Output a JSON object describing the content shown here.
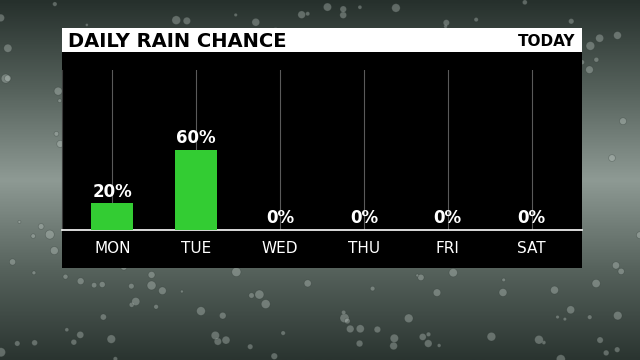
{
  "chart_data": {
    "type": "bar",
    "title": "DAILY RAIN CHANCE",
    "subtitle": "TODAY",
    "categories": [
      "MON",
      "TUE",
      "WED",
      "THU",
      "FRI",
      "SAT"
    ],
    "values": [
      20,
      60,
      0,
      0,
      0,
      0
    ],
    "value_labels": [
      "20%",
      "60%",
      "0%",
      "0%",
      "0%",
      "0%"
    ],
    "color": "#33cc33",
    "ylim": [
      0,
      120
    ],
    "yticks": [],
    "grid": true,
    "data_labels": true,
    "tick_labels": "x"
  }
}
